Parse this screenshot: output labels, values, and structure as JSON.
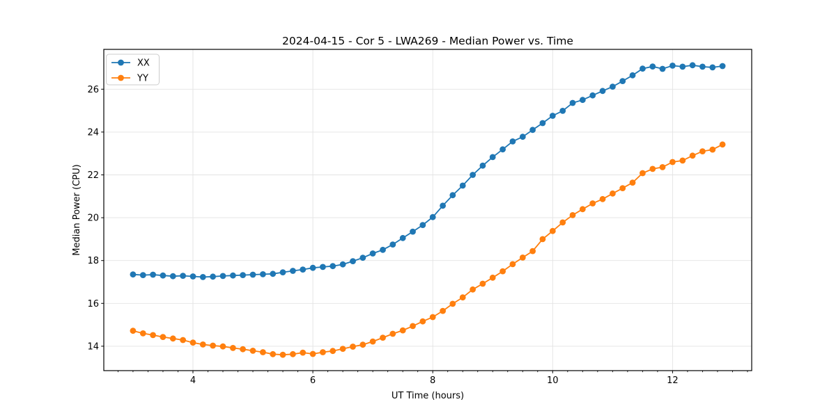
{
  "chart_data": {
    "type": "line",
    "title": "2024-04-15 - Cor 5 - LWA269 - Median Power vs. Time",
    "xlabel": "UT Time (hours)",
    "ylabel": "Median Power (CPU)",
    "xlim": [
      2.513,
      13.32
    ],
    "ylim": [
      12.86,
      27.86
    ],
    "x_major_ticks": [
      4,
      6,
      8,
      10,
      12
    ],
    "x_minor_tick_step": 0.25,
    "y_major_ticks": [
      14,
      16,
      18,
      20,
      22,
      24,
      26
    ],
    "grid": true,
    "legend_position": "upper-left",
    "colors": {
      "xx": "#1f77b4",
      "yy": "#ff7f0e",
      "grid": "#e3e3e3",
      "frame": "#000000",
      "legend_border": "#cccccc"
    },
    "x": [
      3.0,
      3.167,
      3.333,
      3.5,
      3.667,
      3.833,
      4.0,
      4.167,
      4.333,
      4.5,
      4.667,
      4.833,
      5.0,
      5.167,
      5.333,
      5.5,
      5.667,
      5.833,
      6.0,
      6.167,
      6.333,
      6.5,
      6.667,
      6.833,
      7.0,
      7.167,
      7.333,
      7.5,
      7.667,
      7.833,
      8.0,
      8.167,
      8.333,
      8.5,
      8.667,
      8.833,
      9.0,
      9.167,
      9.333,
      9.5,
      9.667,
      9.833,
      10.0,
      10.167,
      10.333,
      10.5,
      10.667,
      10.833,
      11.0,
      11.167,
      11.333,
      11.5,
      11.667,
      11.833,
      12.0,
      12.167,
      12.333,
      12.5,
      12.667,
      12.833
    ],
    "series": [
      {
        "name": "XX",
        "color": "#1f77b4",
        "values": [
          17.35,
          17.32,
          17.34,
          17.3,
          17.27,
          17.29,
          17.26,
          17.23,
          17.25,
          17.28,
          17.3,
          17.32,
          17.34,
          17.36,
          17.38,
          17.45,
          17.52,
          17.58,
          17.66,
          17.7,
          17.74,
          17.82,
          17.97,
          18.13,
          18.33,
          18.5,
          18.75,
          19.05,
          19.35,
          19.66,
          20.03,
          20.56,
          21.05,
          21.5,
          22.0,
          22.43,
          22.83,
          23.19,
          23.56,
          23.78,
          24.1,
          24.42,
          24.76,
          24.99,
          25.36,
          25.5,
          25.71,
          25.92,
          26.12,
          26.38,
          26.65,
          26.96,
          27.06,
          26.95,
          27.1,
          27.05,
          27.12,
          27.05,
          27.02,
          27.08
        ]
      },
      {
        "name": "YY",
        "color": "#ff7f0e",
        "values": [
          14.72,
          14.6,
          14.52,
          14.43,
          14.36,
          14.29,
          14.17,
          14.08,
          14.03,
          13.99,
          13.92,
          13.86,
          13.79,
          13.72,
          13.63,
          13.6,
          13.63,
          13.7,
          13.64,
          13.72,
          13.78,
          13.88,
          13.98,
          14.07,
          14.22,
          14.4,
          14.58,
          14.74,
          14.94,
          15.16,
          15.36,
          15.65,
          15.98,
          16.28,
          16.65,
          16.92,
          17.2,
          17.5,
          17.83,
          18.14,
          18.44,
          19.0,
          19.38,
          19.78,
          20.12,
          20.4,
          20.67,
          20.87,
          21.13,
          21.38,
          21.64,
          22.08,
          22.28,
          22.36,
          22.6,
          22.67,
          22.9,
          23.1,
          23.18,
          23.42
        ]
      }
    ]
  }
}
